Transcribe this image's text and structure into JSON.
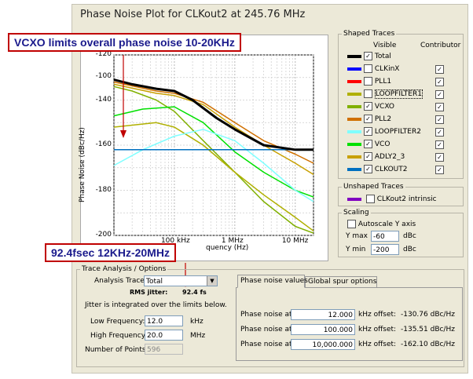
{
  "title": "Phase Noise Plot for CLKout2 at 245.76 MHz",
  "callouts": {
    "vcxo": "VCXO limits overall phase noise 10-20KHz",
    "jitter": "92.4fsec 12KHz-20MHz"
  },
  "colors": {
    "callout_border": "#c00000",
    "callout_text": "#1a1a8c",
    "arrow": "#c00000"
  },
  "chart_data": {
    "type": "line",
    "ylabel": "Phase Noise (dBc/Hz)",
    "xlabel_visible": "quency (Hz)",
    "x_scale": "log",
    "ylim": [
      -200,
      -120
    ],
    "y_ticks": [
      "-120",
      "-140",
      "-160",
      "-180",
      "-200"
    ],
    "y_ticks_minor": [
      "-100",
      "-120",
      "-140",
      "-160",
      "-180",
      "-200"
    ],
    "x_ticks": [
      "100 kHz",
      "1 MHz",
      "10 MHz"
    ],
    "grid": true,
    "series": [
      {
        "name": "Total",
        "color": "#000000",
        "width": 3,
        "x": [
          10000,
          20000,
          50000,
          100000,
          200000,
          500000,
          1000000,
          3000000,
          10000000,
          20000000
        ],
        "y": [
          -131,
          -133,
          -135,
          -136,
          -140,
          -148,
          -153,
          -160,
          -162,
          -162
        ]
      },
      {
        "name": "ADLY2_3",
        "color": "#c8a000",
        "width": 1.5,
        "x": [
          10000,
          50000,
          100000,
          300000,
          1000000,
          3000000,
          10000000,
          20000000
        ],
        "y": [
          -133,
          -137,
          -138,
          -142,
          -152,
          -160,
          -168,
          -173
        ]
      },
      {
        "name": "PLL2",
        "color": "#d07000",
        "width": 1.5,
        "x": [
          10000,
          50000,
          100000,
          300000,
          1000000,
          3000000,
          10000000,
          20000000
        ],
        "y": [
          -132,
          -136,
          -137,
          -141,
          -150,
          -158,
          -164,
          -168
        ]
      },
      {
        "name": "VCXO",
        "color": "#80b000",
        "width": 1.5,
        "x": [
          10000,
          20000,
          50000,
          100000,
          300000,
          1000000,
          3000000,
          10000000,
          20000000
        ],
        "y": [
          -134,
          -136,
          -140,
          -145,
          -158,
          -172,
          -185,
          -196,
          -199
        ]
      },
      {
        "name": "LOOPFILTER1",
        "color": "#b0b000",
        "width": 1.5,
        "x": [
          10000,
          50000,
          100000,
          300000,
          1000000,
          3000000,
          10000000,
          20000000
        ],
        "y": [
          -152,
          -150,
          -152,
          -160,
          -172,
          -182,
          -192,
          -198
        ]
      },
      {
        "name": "VCO",
        "color": "#00e000",
        "width": 1.5,
        "x": [
          10000,
          30000,
          100000,
          300000,
          1000000,
          3000000,
          10000000,
          20000000
        ],
        "y": [
          -147,
          -144,
          -143,
          -150,
          -163,
          -172,
          -180,
          -183
        ]
      },
      {
        "name": "LOOPFILTER2",
        "color": "#80ffff",
        "width": 1.5,
        "x": [
          10000,
          30000,
          100000,
          300000,
          1000000,
          3000000,
          10000000,
          20000000
        ],
        "y": [
          -169,
          -162,
          -156,
          -153,
          -158,
          -168,
          -180,
          -185
        ]
      },
      {
        "name": "CLKOUT2",
        "color": "#0070c0",
        "width": 1.5,
        "x": [
          10000,
          20000000
        ],
        "y": [
          -162,
          -162
        ]
      }
    ]
  },
  "shaped_traces": {
    "legend": "Shaped Traces",
    "col_visible": "Visible",
    "col_contributor": "Contributor",
    "items": [
      {
        "label": "Total",
        "color": "#000000",
        "visible": true,
        "contributor": null
      },
      {
        "label": "CLKinX",
        "color": "#0000ff",
        "visible": false,
        "contributor": true
      },
      {
        "label": "PLL1",
        "color": "#ff0000",
        "visible": false,
        "contributor": true
      },
      {
        "label": "LOOPFILTER1",
        "color": "#b0b000",
        "visible": false,
        "contributor": true
      },
      {
        "label": "VCXO",
        "color": "#80b000",
        "visible": true,
        "contributor": true
      },
      {
        "label": "PLL2",
        "color": "#d07000",
        "visible": true,
        "contributor": true
      },
      {
        "label": "LOOPFILTER2",
        "color": "#80ffff",
        "visible": true,
        "contributor": true
      },
      {
        "label": "VCO",
        "color": "#00e000",
        "visible": true,
        "contributor": true
      },
      {
        "label": "ADLY2_3",
        "color": "#c8a000",
        "visible": true,
        "contributor": true
      },
      {
        "label": "CLKOUT2",
        "color": "#0070c0",
        "visible": true,
        "contributor": true
      }
    ]
  },
  "unshaped_traces": {
    "legend": "Unshaped Traces",
    "label": "CLKout2 intrinsic",
    "color": "#8000c0"
  },
  "scaling": {
    "legend": "Scaling",
    "autoscale_label": "Autoscale Y axis",
    "ymax_label": "Y max",
    "ymax": "-60",
    "ymin_label": "Y min",
    "ymin": "-200",
    "unit": "dBc"
  },
  "trace_analysis": {
    "legend": "Trace Analysis / Options",
    "analysis_trace_label": "Analysis Trace:",
    "analysis_trace_value": "Total",
    "rms_jitter_label": "RMS jitter:",
    "rms_jitter_value": "92.4 fs",
    "note": "Jitter is integrated over the limits below.",
    "low_freq_label": "Low Frequency:",
    "low_freq_value": "12.0",
    "low_freq_unit": "kHz",
    "high_freq_label": "High Frequency:",
    "high_freq_value": "20.0",
    "high_freq_unit": "MHz",
    "points_label": "Number of Points:",
    "points_value": "596"
  },
  "tabs": [
    "Phase noise values",
    "Global spur options"
  ],
  "phase_noise_values": [
    {
      "label": "Phase noise at",
      "value": "12.000",
      "suffix": "kHz offset:",
      "result": "-130.76 dBc/Hz"
    },
    {
      "label": "Phase noise at",
      "value": "100.000",
      "suffix": "kHz offset:",
      "result": "-135.51 dBc/Hz"
    },
    {
      "label": "Phase noise at",
      "value": "10,000.000",
      "suffix": "kHz offset:",
      "result": "-162.10 dBc/Hz"
    }
  ]
}
